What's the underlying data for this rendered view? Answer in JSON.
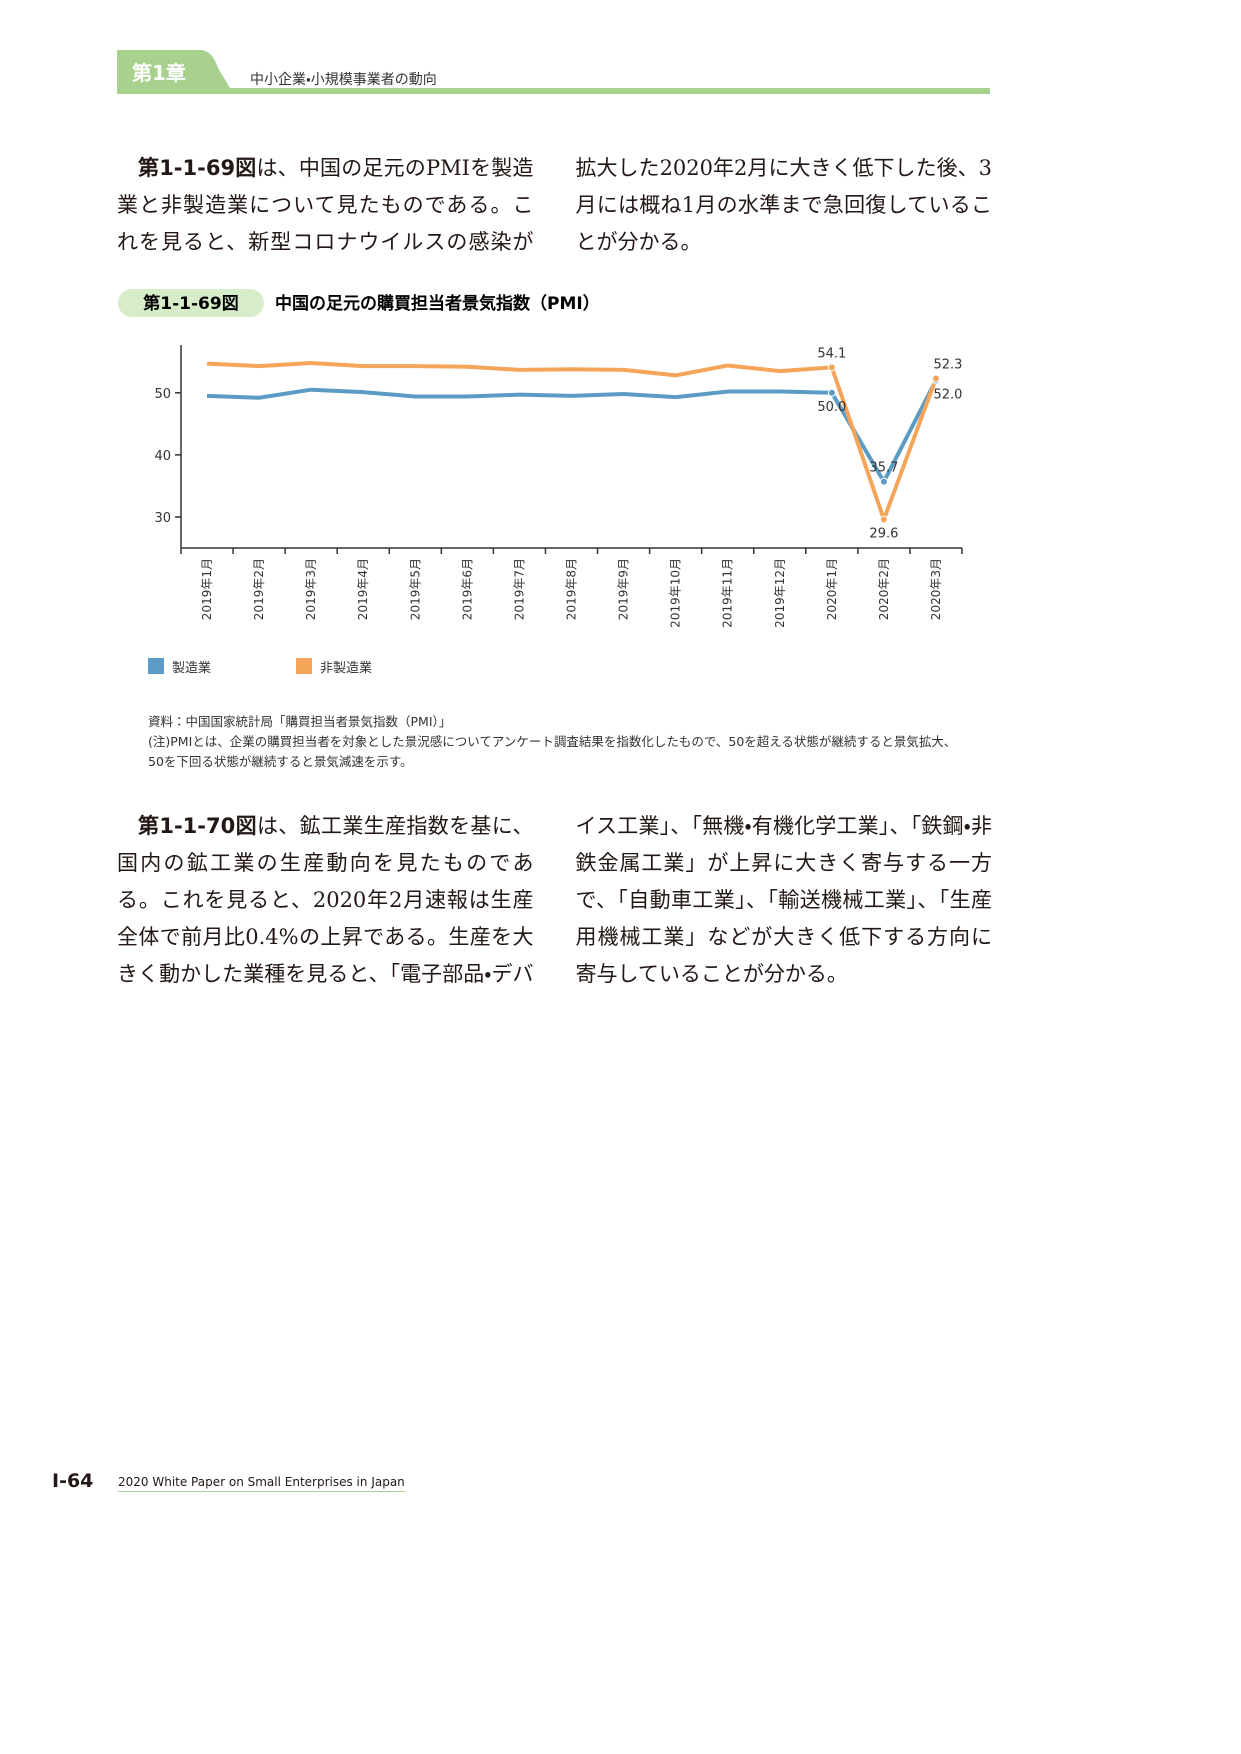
{
  "header": {
    "chapter": "第1章",
    "subtitle": "中小企業・小規模事業者の動向"
  },
  "paragraphs": [
    {
      "ref": "第1-1-69図",
      "text": "は、中国の足元のPMIを製造業と非製造業について見たものである。これを見ると、新型コロナウイルスの感染が拡大した2020年2月に大きく低下した後、3月には概ね1月の水準まで急回復していることが分かる。"
    },
    {
      "ref": "第1-1-70図",
      "text": "は、鉱工業生産指数を基に、国内の鉱工業の生産動向を見たものである。これを見ると、2020年2月速報は生産全体で前月比0.4%の上昇である。生産を大きく動かした業種を見ると、「電子部品・デバイス工業」、「無機・有機化学工業」、「鉄鋼・非鉄金属工業」が上昇に大きく寄与する一方で、「自動車工業」、「輸送機械工業」、「生産用機械工業」などが大きく低下する方向に寄与していることが分かる。"
    }
  ],
  "chart_data": {
    "type": "line",
    "figure_label": "第1-1-69図",
    "title": "中国の足元の購買担当者景気指数（PMI）",
    "categories": [
      "2019年1月",
      "2019年2月",
      "2019年3月",
      "2019年4月",
      "2019年5月",
      "2019年6月",
      "2019年7月",
      "2019年8月",
      "2019年9月",
      "2019年10月",
      "2019年11月",
      "2019年12月",
      "2020年1月",
      "2020年2月",
      "2020年3月"
    ],
    "series": [
      {
        "name": "製造業",
        "color": "#5b9bc4",
        "values": [
          49.5,
          49.2,
          50.5,
          50.1,
          49.4,
          49.4,
          49.7,
          49.5,
          49.8,
          49.3,
          50.2,
          50.2,
          50.0,
          35.7,
          52.0
        ],
        "value_labels": [
          null,
          null,
          null,
          null,
          null,
          null,
          null,
          null,
          null,
          null,
          null,
          null,
          "50.0",
          "35.7",
          "52.0"
        ]
      },
      {
        "name": "非製造業",
        "color": "#f5a55a",
        "values": [
          54.7,
          54.3,
          54.8,
          54.3,
          54.3,
          54.2,
          53.7,
          53.8,
          53.7,
          52.8,
          54.4,
          53.5,
          54.1,
          29.6,
          52.3
        ],
        "value_labels": [
          null,
          null,
          null,
          null,
          null,
          null,
          null,
          null,
          null,
          null,
          null,
          null,
          "54.1",
          "29.6",
          "52.3"
        ]
      }
    ],
    "ylim": [
      25,
      57.7
    ],
    "yticks": [
      30,
      40,
      50
    ],
    "grid": false,
    "legend": "bottom-left"
  },
  "notes": {
    "source": "資料：中国国家統計局「購買担当者景気指数（PMI）」",
    "note": "(注)PMIとは、企業の購買担当者を対象とした景況感についてアンケート調査結果を指数化したもので、50を超える状態が継続すると景気拡大、50を下回る状態が継続すると景気減速を示す。"
  },
  "footer": {
    "page": "Ⅰ-64",
    "publication": "2020 White Paper on Small Enterprises in Japan"
  }
}
